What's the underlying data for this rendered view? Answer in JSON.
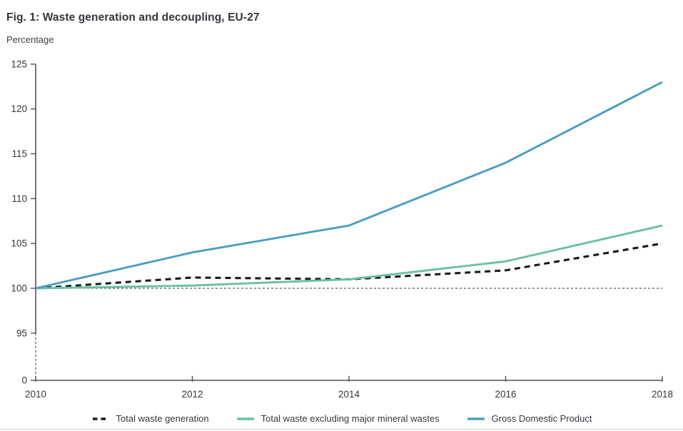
{
  "figure": {
    "title": "Fig. 1: Waste generation and decoupling, EU-27",
    "unit_label": "Percentage"
  },
  "colors": {
    "axis": "#4f5458",
    "tick_label": "#33383d",
    "reference_line": "#333333",
    "total_waste": "#1a1a1a",
    "waste_excl_mineral": "#69c0a5",
    "gdp": "#4a9dc3"
  },
  "chart_data": {
    "type": "line",
    "title": "Fig. 1: Waste generation and decoupling, EU-27",
    "ylabel": "Percentage",
    "x": [
      2010,
      2012,
      2014,
      2016,
      2018
    ],
    "xticks": [
      2010,
      2012,
      2014,
      2016,
      2018
    ],
    "yticks": [
      0,
      95,
      100,
      105,
      110,
      115,
      120,
      125
    ],
    "ylim_shown": [
      95,
      125
    ],
    "axis_break_between": [
      0,
      95
    ],
    "reference_line_y": 100,
    "grid": "off",
    "legend_position": "bottom",
    "series": [
      {
        "name": "Total waste generation",
        "style": "dashed",
        "color": "#1a1a1a",
        "values": [
          100,
          101.2,
          101,
          102,
          105
        ]
      },
      {
        "name": "Total waste excluding major mineral wastes",
        "style": "solid",
        "color": "#69c0a5",
        "values": [
          100,
          100.3,
          101,
          103,
          107
        ]
      },
      {
        "name": "Gross Domestic Product",
        "style": "solid",
        "color": "#4a9dc3",
        "values": [
          100,
          104,
          107,
          114,
          123
        ]
      }
    ]
  }
}
